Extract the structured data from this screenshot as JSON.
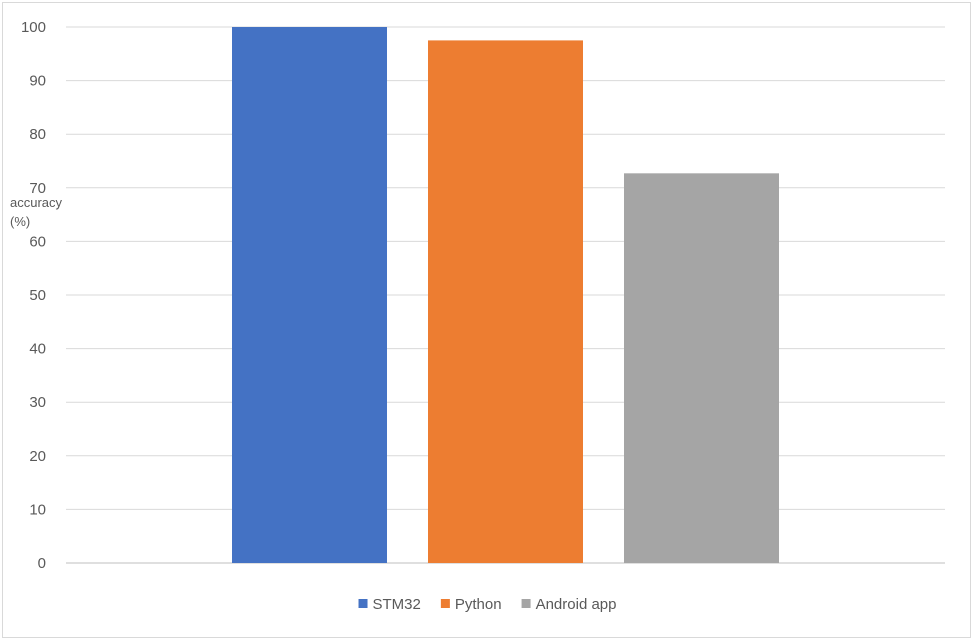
{
  "chart_data": {
    "type": "bar",
    "categories": [
      "STM32",
      "Python",
      "Android app"
    ],
    "values": [
      100,
      97.5,
      72.7
    ],
    "colors": [
      "#4472c4",
      "#ed7d31",
      "#a5a5a5"
    ],
    "title": "",
    "xlabel": "",
    "ylabel": "accuracy (%)",
    "ylabel_lines": [
      "accuracy",
      "(%)"
    ],
    "ylim": [
      0,
      100
    ],
    "yticks": [
      0,
      10,
      20,
      30,
      40,
      50,
      60,
      70,
      80,
      90,
      100
    ],
    "grid": true,
    "legend_position": "bottom"
  }
}
